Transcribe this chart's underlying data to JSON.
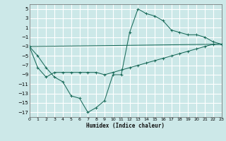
{
  "xlabel": "Humidex (Indice chaleur)",
  "xlim": [
    0,
    23
  ],
  "ylim": [
    -18,
    6
  ],
  "xticks": [
    0,
    1,
    2,
    3,
    4,
    5,
    6,
    7,
    8,
    9,
    10,
    11,
    12,
    13,
    14,
    15,
    16,
    17,
    18,
    19,
    20,
    21,
    22,
    23
  ],
  "yticks": [
    -17,
    -15,
    -13,
    -11,
    -9,
    -7,
    -5,
    -3,
    -1,
    1,
    3,
    5
  ],
  "bg_color": "#cce8e8",
  "grid_color": "#ffffff",
  "line_color": "#1a6b5a",
  "series": [
    {
      "x": [
        0,
        1,
        2,
        3,
        4,
        5,
        6,
        7,
        8,
        9,
        10,
        11,
        12,
        13,
        14,
        15,
        16,
        17,
        18,
        19,
        20,
        21,
        22,
        23
      ],
      "y": [
        -3,
        -5,
        -7.5,
        -9.5,
        -10.5,
        -13.5,
        -14,
        -17,
        -16,
        -14.5,
        -9,
        -9,
        0,
        5,
        4,
        3.5,
        2.5,
        0.5,
        0,
        -0.5,
        -0.5,
        -1,
        -2,
        -2.5
      ],
      "marker": true
    },
    {
      "x": [
        0,
        1,
        2,
        3,
        4,
        5,
        6,
        7,
        8,
        9,
        10,
        11,
        12,
        13,
        14,
        15,
        16,
        17,
        18,
        19,
        20,
        21,
        22,
        23
      ],
      "y": [
        -3,
        -7.5,
        -9.5,
        -8.5,
        -8.5,
        -8.5,
        -8.5,
        -8.5,
        -8.5,
        -9,
        -8.5,
        -8,
        -7.5,
        -7,
        -6.5,
        -6,
        -5.5,
        -5,
        -4.5,
        -4,
        -3.5,
        -3,
        -2.5,
        -2.5
      ],
      "marker": true
    },
    {
      "x": [
        0,
        23
      ],
      "y": [
        -3,
        -2.5
      ],
      "marker": false
    }
  ]
}
